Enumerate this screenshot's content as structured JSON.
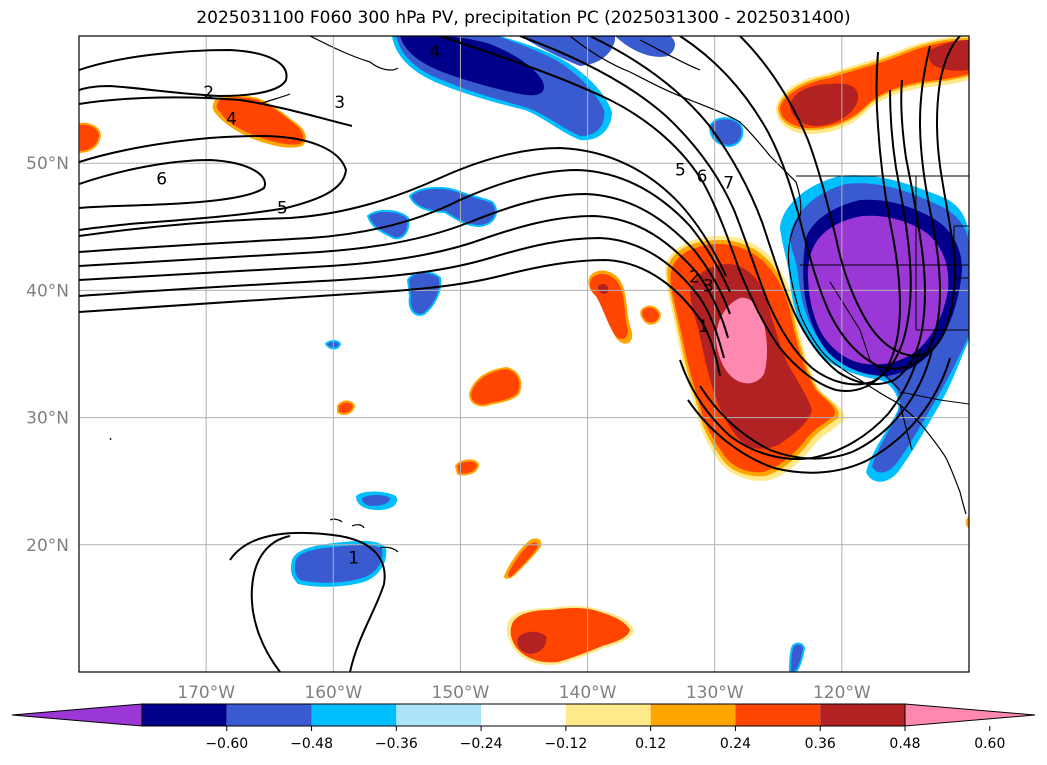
{
  "title": "2025031100 F060 300 hPa PV, precipitation PC (2025031300 - 2025031400)",
  "map": {
    "lon_range": [
      -180,
      -110
    ],
    "lat_range": [
      10,
      60
    ],
    "lon_ticks": [
      {
        "lon": -170,
        "label": "170°W"
      },
      {
        "lon": -160,
        "label": "160°W"
      },
      {
        "lon": -150,
        "label": "150°W"
      },
      {
        "lon": -140,
        "label": "140°W"
      },
      {
        "lon": -130,
        "label": "130°W"
      },
      {
        "lon": -120,
        "label": "120°W"
      }
    ],
    "lat_ticks": [
      {
        "lat": 20,
        "label": "20°N"
      },
      {
        "lat": 30,
        "label": "30°N"
      },
      {
        "lat": 40,
        "label": "40°N"
      },
      {
        "lat": 50,
        "label": "50°N"
      }
    ],
    "grid": true,
    "contour_labels": [
      {
        "text": "2",
        "lon": -169.8,
        "lat": 55.6
      },
      {
        "text": "3",
        "lon": -159.5,
        "lat": 54.8
      },
      {
        "text": "4",
        "lon": -168.0,
        "lat": 53.5
      },
      {
        "text": "6",
        "lon": -173.5,
        "lat": 48.8
      },
      {
        "text": "5",
        "lon": -164.0,
        "lat": 46.5
      },
      {
        "text": "4",
        "lon": -152.0,
        "lat": 58.8
      },
      {
        "text": "5",
        "lon": -132.7,
        "lat": 49.5
      },
      {
        "text": "6",
        "lon": -131.0,
        "lat": 49.0
      },
      {
        "text": "7",
        "lon": -128.9,
        "lat": 48.5
      },
      {
        "text": "2",
        "lon": -131.6,
        "lat": 41.1
      },
      {
        "text": "3",
        "lon": -130.5,
        "lat": 40.4
      },
      {
        "text": "1",
        "lon": -130.9,
        "lat": 37.2
      },
      {
        "text": "1",
        "lon": -158.4,
        "lat": 19.0
      }
    ]
  },
  "colorbar": {
    "levels": [
      -0.6,
      -0.48,
      -0.36,
      -0.24,
      -0.12,
      0.12,
      0.24,
      0.36,
      0.48,
      0.6
    ],
    "labels": [
      "−0.60",
      "−0.48",
      "−0.36",
      "−0.24",
      "−0.12",
      "0.12",
      "0.24",
      "0.36",
      "0.48",
      "0.60"
    ],
    "colors": [
      "#9b37d6",
      "#00008b",
      "#3a5bcf",
      "#00bfff",
      "#aee4fa",
      "#ffffff",
      "#ffe98a",
      "#ffa500",
      "#ff4500",
      "#b22222",
      "#ff88b0"
    ]
  }
}
